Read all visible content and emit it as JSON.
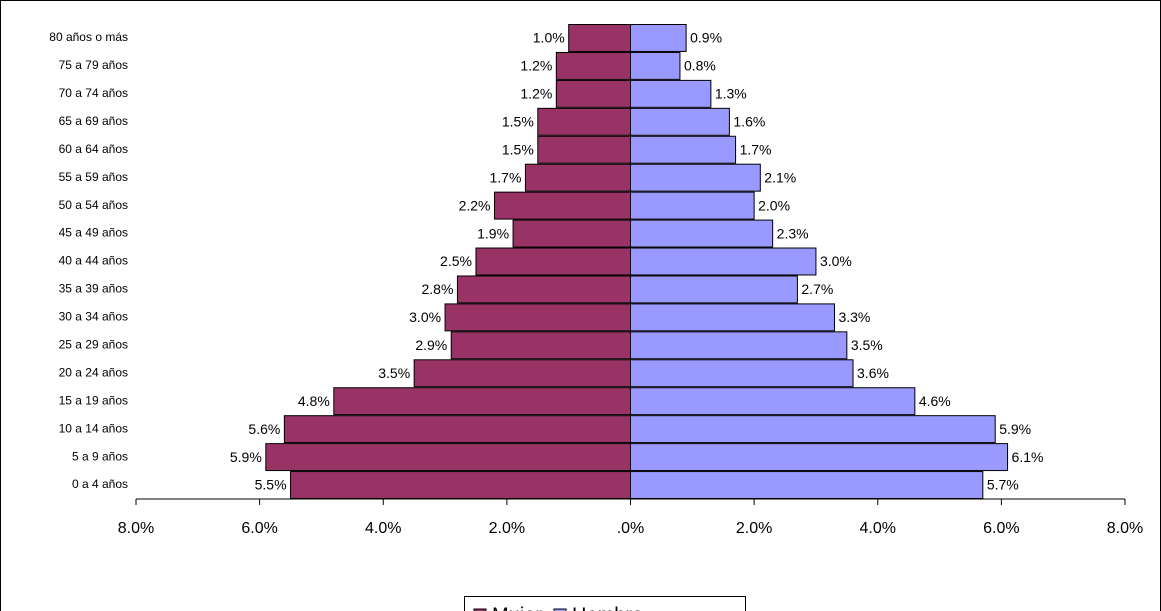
{
  "chart_data": {
    "type": "pyramid",
    "categories": [
      "0 a 4 años",
      "5 a 9 años",
      "10 a 14 años",
      "15 a 19 años",
      "20 a 24 años",
      "25 a 29 años",
      "30 a 34 años",
      "35 a 39 años",
      "40 a 44 años",
      "45 a 49 años",
      "50 a 54 años",
      "55 a 59 años",
      "60 a 64 años",
      "65 a 69 años",
      "70 a 74 años",
      "75 a 79 años",
      "80 años o más"
    ],
    "series": [
      {
        "name": "Mujer",
        "color": "#993366",
        "side": "left",
        "values": [
          5.5,
          5.9,
          5.6,
          4.8,
          3.5,
          2.9,
          3.0,
          2.8,
          2.5,
          1.9,
          2.2,
          1.7,
          1.5,
          1.5,
          1.2,
          1.2,
          1.0
        ],
        "value_labels": [
          "5.5%",
          "5.9%",
          "5.6%",
          "4.8%",
          "3.5%",
          "2.9%",
          "3.0%",
          "2.8%",
          "2.5%",
          "1.9%",
          "2.2%",
          "1.7%",
          "1.5%",
          "1.5%",
          "1.2%",
          "1.2%",
          "1.0%"
        ]
      },
      {
        "name": "Hombre",
        "color": "#9999ff",
        "side": "right",
        "values": [
          5.7,
          6.1,
          5.9,
          4.6,
          3.6,
          3.5,
          3.3,
          2.7,
          3.0,
          2.3,
          2.0,
          2.1,
          1.7,
          1.6,
          1.3,
          0.8,
          0.9
        ],
        "value_labels": [
          "5.7%",
          "6.1%",
          "5.9%",
          "4.6%",
          "3.6%",
          "3.5%",
          "3.3%",
          "2.7%",
          "3.0%",
          "2.3%",
          "2.0%",
          "2.1%",
          "1.7%",
          "1.6%",
          "1.3%",
          "0.8%",
          "0.9%"
        ]
      }
    ],
    "xlim": [
      -8,
      8
    ],
    "xticks": [
      {
        "value": -8,
        "label": "8.0%"
      },
      {
        "value": -6,
        "label": "6.0%"
      },
      {
        "value": -4,
        "label": "4.0%"
      },
      {
        "value": -2,
        "label": "2.0%"
      },
      {
        "value": 0,
        "label": ".0%"
      },
      {
        "value": 2,
        "label": "2.0%"
      },
      {
        "value": 4,
        "label": "4.0%"
      },
      {
        "value": 6,
        "label": "6.0%"
      },
      {
        "value": 8,
        "label": "8.0%"
      }
    ],
    "legend": "bottom"
  }
}
